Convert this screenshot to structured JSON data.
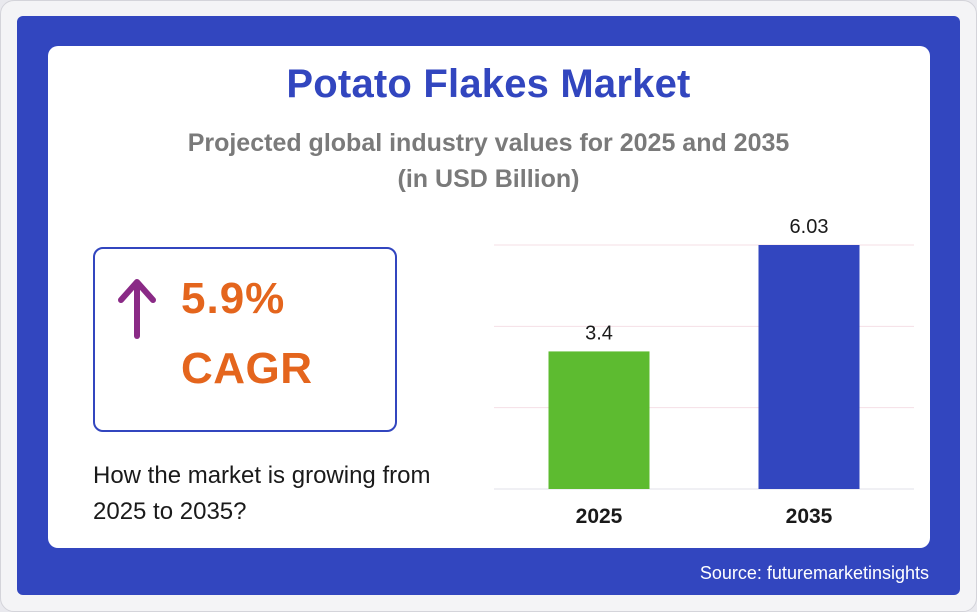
{
  "title": "Potato Flakes Market",
  "subtitle_line1": "Projected global industry values for 2025 and 2035",
  "subtitle_line2": "(in USD Billion)",
  "cagr": {
    "value": "5.9%",
    "label": "CAGR",
    "icon": "arrow-up-icon"
  },
  "question": "How the market is growing from 2025 to 2035?",
  "source": "Source: futuremarketinsights",
  "colors": {
    "brand": "#3246bf",
    "accent": "#e4651d",
    "bar_2025": "#5dbb30",
    "bar_2035": "#3246bf",
    "arrow": "#8a2a86"
  },
  "chart_data": {
    "type": "bar",
    "categories": [
      "2025",
      "2035"
    ],
    "values": [
      3.4,
      6.03
    ],
    "data_labels": [
      "3.4",
      "6.03"
    ],
    "bar_colors": [
      "#5dbb30",
      "#3246bf"
    ],
    "title": "",
    "xlabel": "",
    "ylabel": "",
    "ylim": [
      0,
      6.03
    ],
    "grid": true
  }
}
